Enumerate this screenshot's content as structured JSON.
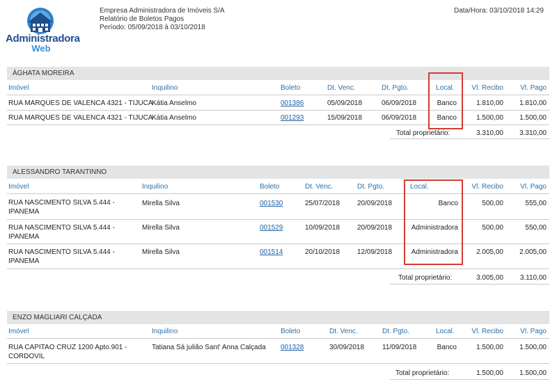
{
  "header": {
    "logo_brand": "Administradora",
    "logo_sub": "Web",
    "company": "Empresa Administradora de Imóveis S/A",
    "report_title": "Relatório de Boletos Pagos",
    "period": "Período: 05/09/2018 à 03/10/2018",
    "datetime": "Data/Hora: 03/10/2018 14:29"
  },
  "columns": {
    "imovel": "Imóvel",
    "inquilino": "Inquilino",
    "boleto": "Boleto",
    "dt_venc": "Dt. Venc.",
    "dt_pgto": "Dt. Pgto.",
    "local": "Local.",
    "vl_recibo": "Vl. Recibo",
    "vl_pago": "Vl. Pago"
  },
  "total_label": "Total proprietário:",
  "sections": [
    {
      "owner": "ÁGHATA MOREIRA",
      "rows": [
        {
          "imovel_1": "RUA MARQUES DE VALENCA 4321 - TIJUCA",
          "imovel_2": "",
          "inquilino": "Kátia Anselmo",
          "boleto": "001386",
          "dt_venc": "05/09/2018",
          "dt_pgto": "06/09/2018",
          "local": "Banco",
          "vl_recibo": "1.810,00",
          "vl_pago": "1.810,00"
        },
        {
          "imovel_1": "RUA MARQUES DE VALENCA 4321 - TIJUCA",
          "imovel_2": "",
          "inquilino": "Kátia Anselmo",
          "boleto": "001293",
          "dt_venc": "15/09/2018",
          "dt_pgto": "06/09/2018",
          "local": "Banco",
          "vl_recibo": "1.500,00",
          "vl_pago": "1.500,00"
        }
      ],
      "total_recibo": "3.310,00",
      "total_pago": "3.310,00"
    },
    {
      "owner": "ALESSANDRO TARANTINNO",
      "rows": [
        {
          "imovel_1": "RUA NASCIMENTO SILVA 5.444 -",
          "imovel_2": "IPANEMA",
          "inquilino": "Mirella Silva",
          "boleto": "001530",
          "dt_venc": "25/07/2018",
          "dt_pgto": "20/09/2018",
          "local": "Banco",
          "vl_recibo": "500,00",
          "vl_pago": "555,00"
        },
        {
          "imovel_1": "RUA NASCIMENTO SILVA 5.444 -",
          "imovel_2": "IPANEMA",
          "inquilino": "Mirella Silva",
          "boleto": "001529",
          "dt_venc": "10/09/2018",
          "dt_pgto": "20/09/2018",
          "local": "Administradora",
          "vl_recibo": "500,00",
          "vl_pago": "550,00"
        },
        {
          "imovel_1": "RUA NASCIMENTO SILVA 5.444 -",
          "imovel_2": "IPANEMA",
          "inquilino": "Mirella Silva",
          "boleto": "001514",
          "dt_venc": "20/10/2018",
          "dt_pgto": "12/09/2018",
          "local": "Administradora",
          "vl_recibo": "2.005,00",
          "vl_pago": "2.005,00"
        }
      ],
      "total_recibo": "3.005,00",
      "total_pago": "3.110,00"
    },
    {
      "owner": "ENZO MAGLIARI CALÇADA",
      "rows": [
        {
          "imovel_1": "RUA CAPITAO CRUZ 1200 Apto.901 -",
          "imovel_2": "CORDOVIL",
          "inquilino": "Tatiana Sá julião Sant' Anna Calçada",
          "boleto": "001328",
          "dt_venc": "30/09/2018",
          "dt_pgto": "11/09/2018",
          "local": "Banco",
          "vl_recibo": "1.500,00",
          "vl_pago": "1.500,00"
        }
      ],
      "total_recibo": "1.500,00",
      "total_pago": "1.500,00"
    }
  ]
}
